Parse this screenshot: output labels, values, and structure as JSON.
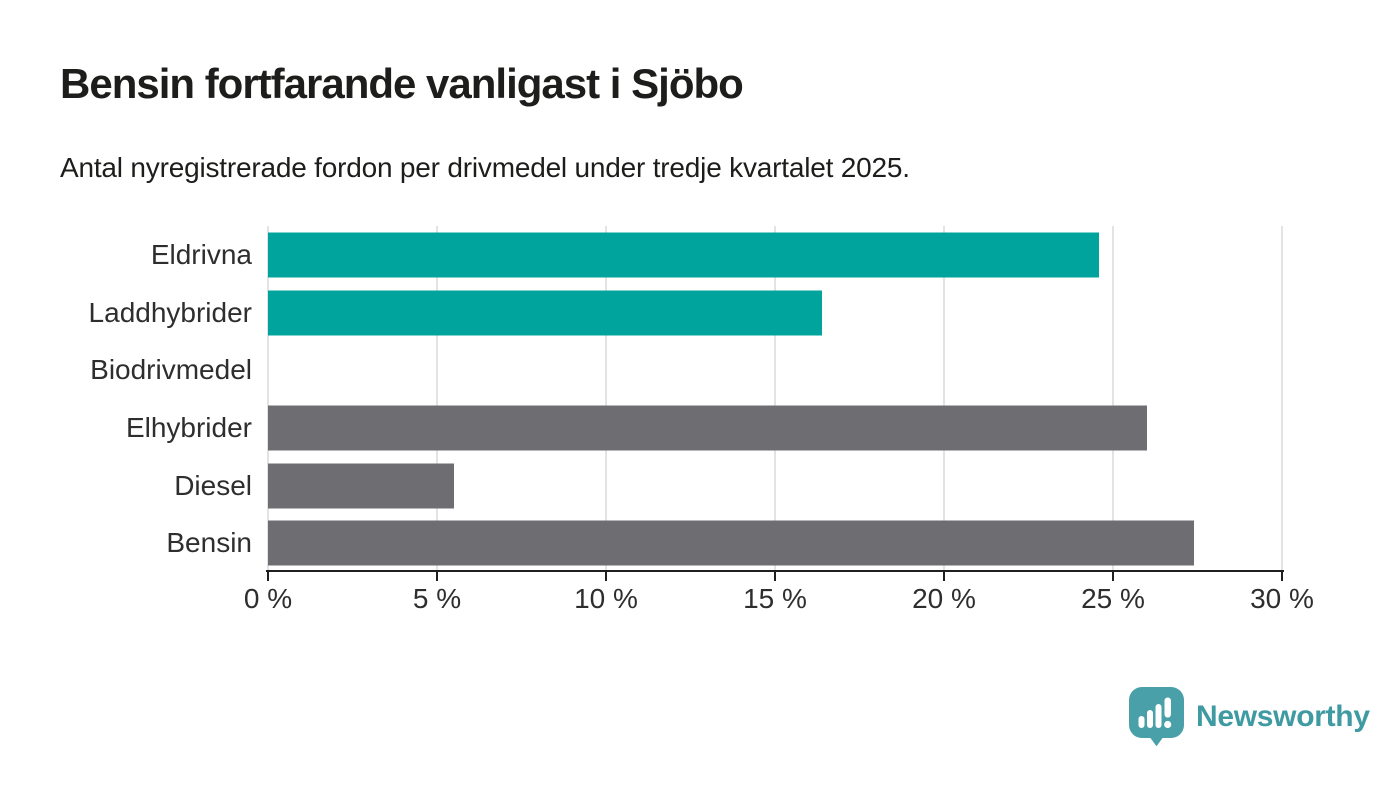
{
  "title": "Bensin fortfarande vanligast i Sjöbo",
  "subtitle": "Antal nyregistrerade fordon per drivmedel under tredje kvartalet 2025.",
  "brand": {
    "name": "Newsworthy"
  },
  "colors": {
    "teal_bar": "#00a49c",
    "gray_bar": "#6d6d72",
    "gridline": "#e3e3e3",
    "axis": "#1f1f1f",
    "text_dark": "#1d1d1b",
    "label": "#2e2e2e",
    "logo_icon": "#4aa0a8",
    "logo_text": "#3f9aa2"
  },
  "chart_data": {
    "type": "bar",
    "orientation": "horizontal",
    "title": "Bensin fortfarande vanligast i Sjöbo",
    "subtitle": "Antal nyregistrerade fordon per drivmedel under tredje kvartalet 2025.",
    "categories": [
      "Eldrivna",
      "Laddhybrider",
      "Biodrivmedel",
      "Elhybrider",
      "Diesel",
      "Bensin"
    ],
    "values": [
      24.6,
      16.4,
      0,
      26,
      5.5,
      27.4
    ],
    "unit": "%",
    "bar_colors": [
      "#00a49c",
      "#00a49c",
      "#6d6d72",
      "#6d6d72",
      "#6d6d72",
      "#6d6d72"
    ],
    "xlabel": "",
    "ylabel": "",
    "xlim": [
      0,
      30
    ],
    "xticks": [
      0,
      5,
      10,
      15,
      20,
      25,
      30
    ],
    "xtick_labels": [
      "0 %",
      "5 %",
      "10 %",
      "15 %",
      "20 %",
      "25 %",
      "30 %"
    ],
    "grid": true,
    "legend": false
  }
}
